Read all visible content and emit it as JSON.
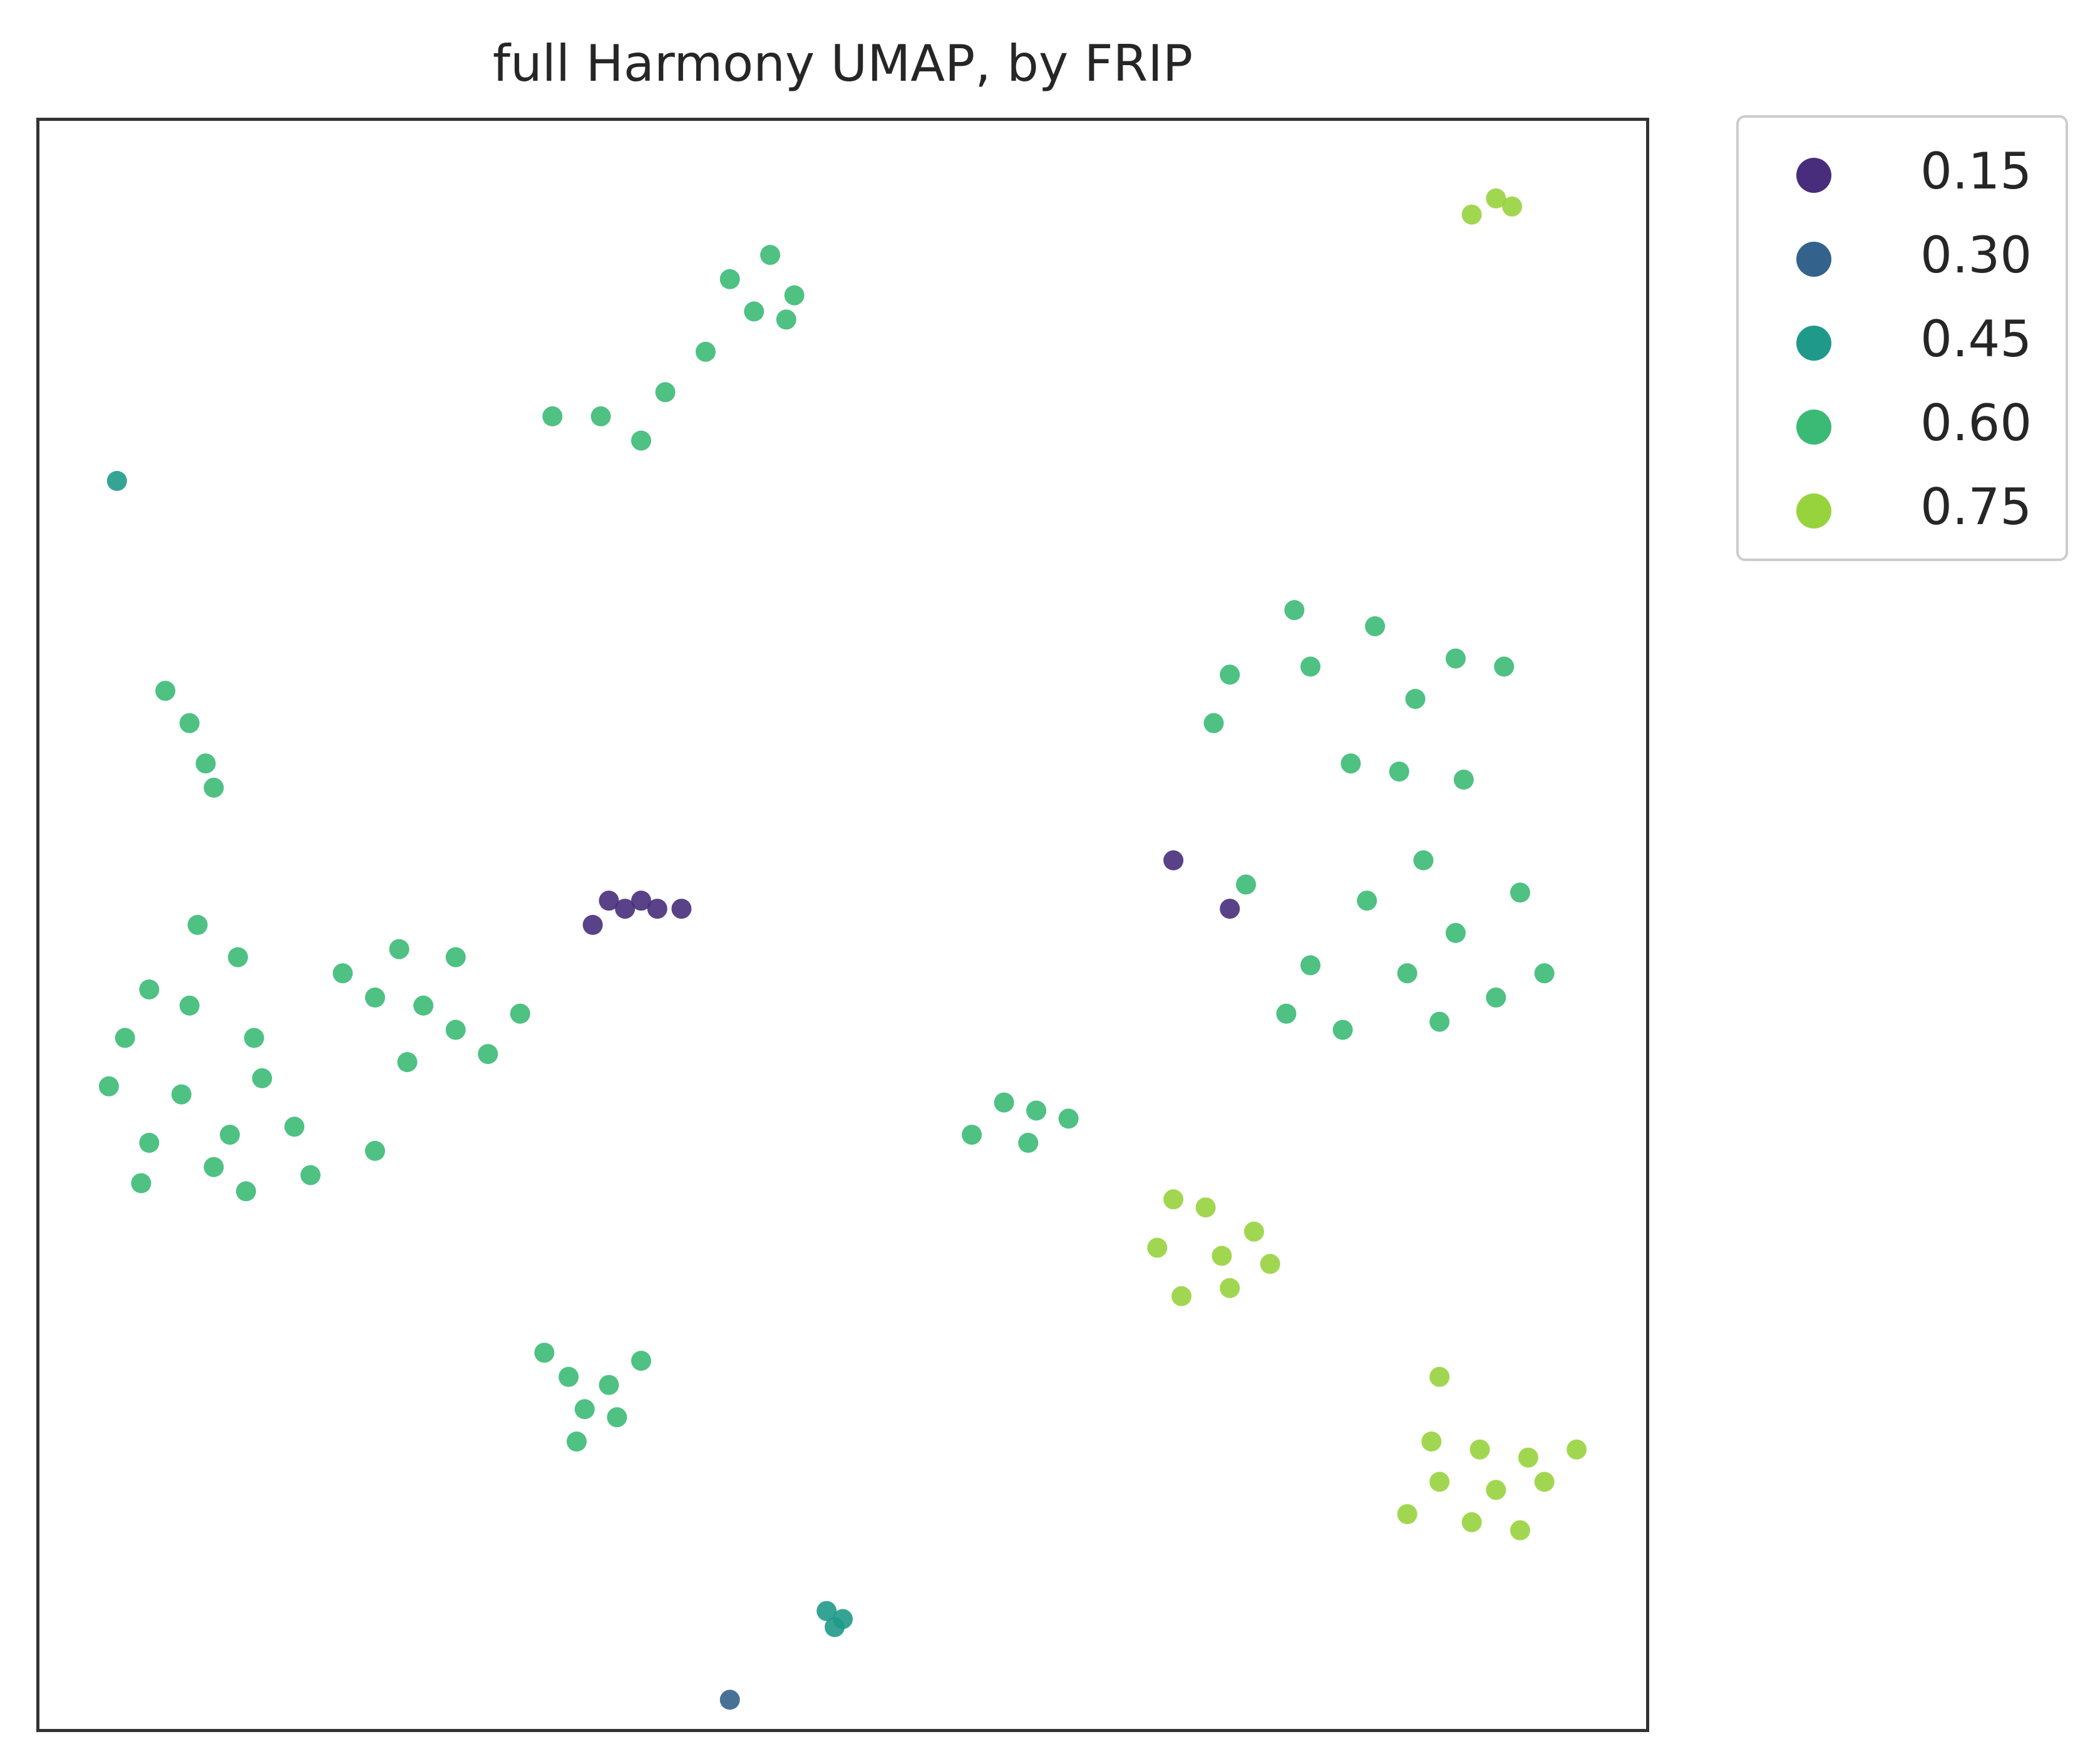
{
  "chart_data": {
    "type": "scatter",
    "title": "full Harmony UMAP, by FRIP",
    "xlabel": "",
    "ylabel": "",
    "xlim": [
      0,
      100
    ],
    "ylim": [
      0,
      100
    ],
    "axis_ticks": "none",
    "grid": false,
    "colormap": "viridis",
    "color_variable": "FRIP",
    "legend": {
      "placement": "outside-top-right",
      "entries": [
        {
          "label": "0.15",
          "color": "#472d7b"
        },
        {
          "label": "0.30",
          "color": "#33638d"
        },
        {
          "label": "0.45",
          "color": "#1f9a8a"
        },
        {
          "label": "0.60",
          "color": "#3bba75"
        },
        {
          "label": "0.75",
          "color": "#97d33d"
        }
      ]
    },
    "clusters": [
      {
        "id": "top-bridge",
        "points": [
          [
            43.0,
            90.0
          ],
          [
            45.5,
            91.5
          ],
          [
            47.0,
            89.0
          ],
          [
            44.5,
            88.0
          ],
          [
            46.5,
            87.5
          ],
          [
            39.0,
            83.0
          ],
          [
            35.0,
            81.5
          ],
          [
            32.0,
            81.5
          ],
          [
            41.5,
            85.5
          ],
          [
            37.5,
            80.0
          ]
        ],
        "dominant_frip": 0.6
      },
      {
        "id": "tiny-top-right",
        "points": [
          [
            90.5,
            95.0
          ],
          [
            91.5,
            94.5
          ],
          [
            89.0,
            94.0
          ]
        ],
        "dominant_frip": 0.75
      },
      {
        "id": "tiny-left",
        "points": [
          [
            5.0,
            77.5
          ]
        ],
        "dominant_frip": 0.45
      },
      {
        "id": "left-strand",
        "points": [
          [
            8.0,
            64.5
          ],
          [
            9.5,
            62.5
          ],
          [
            10.5,
            60.0
          ],
          [
            11.0,
            58.5
          ]
        ],
        "dominant_frip": 0.6
      },
      {
        "id": "left-large",
        "points": [
          [
            10.0,
            50.0
          ],
          [
            7.0,
            46.0
          ],
          [
            5.5,
            43.0
          ],
          [
            9.5,
            45.0
          ],
          [
            13.5,
            43.0
          ],
          [
            9.0,
            39.5
          ],
          [
            12.0,
            37.0
          ],
          [
            17.0,
            34.5
          ],
          [
            7.0,
            36.5
          ],
          [
            14.0,
            40.5
          ],
          [
            16.0,
            37.5
          ],
          [
            12.5,
            48.0
          ],
          [
            4.5,
            40.0
          ],
          [
            6.5,
            34.0
          ],
          [
            21.0,
            36.0
          ],
          [
            11.0,
            35.0
          ],
          [
            13.0,
            33.5
          ]
        ],
        "dominant_frip": 0.6
      },
      {
        "id": "left-center",
        "points": [
          [
            21.0,
            45.5
          ],
          [
            24.0,
            45.0
          ],
          [
            26.0,
            43.5
          ],
          [
            28.0,
            42.0
          ],
          [
            30.0,
            44.5
          ],
          [
            22.5,
            48.5
          ],
          [
            26.0,
            48.0
          ],
          [
            19.0,
            47.0
          ],
          [
            23.0,
            41.5
          ]
        ],
        "dominant_frip": 0.6
      },
      {
        "id": "middle-violet",
        "points": [
          [
            35.5,
            51.5
          ],
          [
            36.5,
            51.0
          ],
          [
            37.5,
            51.5
          ],
          [
            38.5,
            51.0
          ],
          [
            40.0,
            51.0
          ],
          [
            34.5,
            50.0
          ]
        ],
        "dominant_frip": 0.15
      },
      {
        "id": "right-large",
        "points": [
          [
            78.0,
            69.5
          ],
          [
            83.0,
            68.5
          ],
          [
            88.0,
            66.5
          ],
          [
            74.0,
            65.5
          ],
          [
            79.0,
            66.0
          ],
          [
            85.5,
            64.0
          ],
          [
            91.0,
            66.0
          ],
          [
            73.0,
            62.5
          ],
          [
            84.5,
            59.5
          ],
          [
            86.0,
            54.0
          ],
          [
            82.5,
            51.5
          ],
          [
            79.0,
            47.5
          ],
          [
            85.0,
            47.0
          ],
          [
            90.5,
            45.5
          ],
          [
            93.5,
            47.0
          ],
          [
            77.5,
            44.5
          ],
          [
            81.0,
            43.5
          ],
          [
            87.0,
            44.0
          ],
          [
            88.0,
            49.5
          ],
          [
            92.0,
            52.0
          ],
          [
            75.0,
            52.5
          ],
          [
            81.5,
            60.0
          ],
          [
            88.5,
            59.0
          ]
        ],
        "dominant_frip": 0.6
      },
      {
        "id": "right-violet",
        "points": [
          [
            74.0,
            51.0
          ],
          [
            70.5,
            54.0
          ]
        ],
        "dominant_frip": 0.15
      },
      {
        "id": "center-upper",
        "points": [
          [
            60.0,
            39.0
          ],
          [
            62.0,
            38.5
          ],
          [
            58.0,
            37.0
          ],
          [
            61.5,
            36.5
          ],
          [
            64.0,
            38.0
          ]
        ],
        "dominant_frip": 0.6
      },
      {
        "id": "center-lower",
        "points": [
          [
            70.5,
            33.0
          ],
          [
            72.5,
            32.5
          ],
          [
            69.5,
            30.0
          ],
          [
            73.5,
            29.5
          ],
          [
            75.5,
            31.0
          ],
          [
            71.0,
            27.0
          ],
          [
            74.0,
            27.5
          ],
          [
            76.5,
            29.0
          ]
        ],
        "dominant_frip": 0.75
      },
      {
        "id": "lower-left",
        "points": [
          [
            31.5,
            23.5
          ],
          [
            33.0,
            22.0
          ],
          [
            35.5,
            21.5
          ],
          [
            37.5,
            23.0
          ],
          [
            34.0,
            20.0
          ],
          [
            36.0,
            19.5
          ],
          [
            33.5,
            18.0
          ]
        ],
        "dominant_frip": 0.6
      },
      {
        "id": "lower-right",
        "points": [
          [
            87.0,
            22.0
          ],
          [
            86.5,
            18.0
          ],
          [
            89.5,
            17.5
          ],
          [
            92.5,
            17.0
          ],
          [
            95.5,
            17.5
          ],
          [
            87.0,
            15.5
          ],
          [
            90.5,
            15.0
          ],
          [
            93.5,
            15.5
          ],
          [
            89.0,
            13.0
          ],
          [
            92.0,
            12.5
          ],
          [
            85.0,
            13.5
          ]
        ],
        "dominant_frip": 0.75
      },
      {
        "id": "bottom-small",
        "points": [
          [
            49.0,
            7.5
          ],
          [
            50.0,
            7.0
          ],
          [
            49.5,
            6.5
          ]
        ],
        "dominant_frip": 0.45
      },
      {
        "id": "bottom-dot",
        "points": [
          [
            43.0,
            2.0
          ]
        ],
        "dominant_frip": 0.3
      }
    ]
  }
}
